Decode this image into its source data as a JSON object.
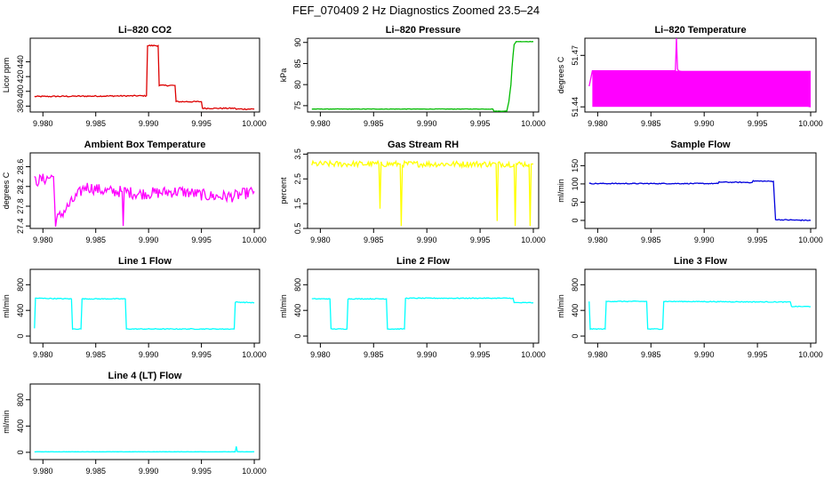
{
  "figure": {
    "title": "FEF_070409  2 Hz Diagnostics Zoomed 23.5–24"
  },
  "chart_data": [
    {
      "type": "line",
      "title": "Li–820 CO2",
      "ylabel": "Licor ppm",
      "color": "#dd0000",
      "xlim": [
        9.9788,
        10.0005
      ],
      "ylim": [
        372,
        472
      ],
      "xticks": [
        "9.980",
        "9.985",
        "9.990",
        "9.995",
        "10.000"
      ],
      "xtick_values": [
        9.98,
        9.985,
        9.99,
        9.995,
        10.0
      ],
      "yticks": [
        "380",
        "400",
        "420",
        "440"
      ],
      "ytick_values": [
        380,
        400,
        420,
        440
      ],
      "series": [
        {
          "x": [
            9.9792,
            9.9898,
            9.9899,
            9.9909,
            9.991,
            9.9925,
            9.9926,
            9.9935,
            9.9936,
            9.995,
            9.9951,
            9.9982,
            9.9983,
            10.0
          ],
          "y": [
            393,
            394,
            462,
            462,
            408,
            408,
            386,
            386,
            386,
            386,
            377,
            377,
            376,
            376
          ]
        }
      ]
    },
    {
      "type": "line",
      "title": "Li–820 Pressure",
      "ylabel": "kPa",
      "color": "#00bb00",
      "xlim": [
        9.9788,
        10.0005
      ],
      "ylim": [
        73.5,
        91
      ],
      "xticks": [
        "9.980",
        "9.985",
        "9.990",
        "9.995",
        "10.000"
      ],
      "xtick_values": [
        9.98,
        9.985,
        9.99,
        9.995,
        10.0
      ],
      "yticks": [
        "75",
        "80",
        "85",
        "90"
      ],
      "ytick_values": [
        75,
        80,
        85,
        90
      ],
      "series": [
        {
          "x": [
            9.9792,
            9.9962,
            9.9963,
            9.9975,
            9.9977,
            9.9979,
            9.998,
            9.9981,
            9.9982,
            9.9984,
            10.0
          ],
          "y": [
            74.2,
            74.2,
            73.7,
            73.7,
            76,
            80,
            84,
            87,
            89.5,
            90.2,
            90.2
          ]
        }
      ]
    },
    {
      "type": "line",
      "title": "Li–820 Temperature",
      "ylabel": "degrees C",
      "color": "#ff00ff",
      "xlim": [
        9.9788,
        10.0005
      ],
      "ylim": [
        51.437,
        51.48
      ],
      "xticks": [
        "9.980",
        "9.985",
        "9.990",
        "9.995",
        "10.000"
      ],
      "xtick_values": [
        9.98,
        9.985,
        9.99,
        9.995,
        10.0
      ],
      "yticks": [
        "51.44",
        "51.47"
      ],
      "ytick_values": [
        51.44,
        51.47
      ],
      "series": [
        {
          "x": [
            9.9792,
            9.9795,
            9.9873,
            9.9874,
            9.9875,
            9.9876,
            10.0
          ],
          "y": [
            51.452,
            51.461,
            51.461,
            51.48,
            51.462,
            51.461,
            51.44
          ]
        }
      ]
    },
    {
      "type": "line",
      "title": "Ambient Box Temperature",
      "ylabel": "degrees C",
      "color": "#ff00ff",
      "xlim": [
        9.9788,
        10.0005
      ],
      "ylim": [
        27.35,
        28.88
      ],
      "xticks": [
        "9.980",
        "9.985",
        "9.990",
        "9.995",
        "10.000"
      ],
      "xtick_values": [
        9.98,
        9.985,
        9.99,
        9.995,
        10.0
      ],
      "yticks": [
        "27.4",
        "27.8",
        "28.2",
        "28.6"
      ],
      "ytick_values": [
        27.4,
        27.8,
        28.2,
        28.6
      ],
      "series": [
        {
          "x": [
            9.9792,
            9.981,
            9.9812,
            9.984,
            9.986,
            9.9875,
            9.9876,
            9.9877,
            9.989,
            9.993,
            9.996,
            9.998,
            10.0
          ],
          "y": [
            28.3,
            28.4,
            27.5,
            28.2,
            28.1,
            28.1,
            27.4,
            28.1,
            28.05,
            28.1,
            28.0,
            28.0,
            28.1
          ]
        }
      ]
    },
    {
      "type": "line",
      "title": "Gas Stream RH",
      "ylabel": "percent",
      "color": "#ffff00",
      "xlim": [
        9.9788,
        10.0005
      ],
      "ylim": [
        0.5,
        3.55
      ],
      "xticks": [
        "9.980",
        "9.985",
        "9.990",
        "9.995",
        "10.000"
      ],
      "xtick_values": [
        9.98,
        9.985,
        9.99,
        9.995,
        10.0
      ],
      "yticks": [
        "0.5",
        "1.5",
        "2.5",
        "3.5"
      ],
      "ytick_values": [
        0.5,
        1.5,
        2.5,
        3.5
      ],
      "series": [
        {
          "x": [
            9.9792,
            9.9855,
            9.9856,
            9.9857,
            9.9875,
            9.9876,
            9.9877,
            9.9965,
            9.9966,
            9.9967,
            9.9982,
            9.9983,
            9.9984,
            9.9996,
            9.9997,
            9.9998,
            10.0
          ],
          "y": [
            3.1,
            3.1,
            1.3,
            3.1,
            3.1,
            0.6,
            3.1,
            3.1,
            0.8,
            3.1,
            3.1,
            0.6,
            3.1,
            3.1,
            0.6,
            3.1,
            3.1
          ]
        }
      ]
    },
    {
      "type": "line",
      "title": "Sample Flow",
      "ylabel": "ml/min",
      "color": "#0000dd",
      "xlim": [
        9.9788,
        10.0005
      ],
      "ylim": [
        -22,
        185
      ],
      "xticks": [
        "9.980",
        "9.985",
        "9.990",
        "9.995",
        "10.000"
      ],
      "xtick_values": [
        9.98,
        9.985,
        9.99,
        9.995,
        10.0
      ],
      "yticks": [
        "0",
        "50",
        "100",
        "150"
      ],
      "ytick_values": [
        0,
        50,
        100,
        150
      ],
      "series": [
        {
          "x": [
            9.9792,
            9.9913,
            9.9914,
            9.9945,
            9.9946,
            9.9965,
            9.9967,
            9.9968,
            10.0
          ],
          "y": [
            101,
            101,
            105,
            104,
            108,
            107,
            2,
            2,
            0
          ]
        }
      ]
    },
    {
      "type": "line",
      "title": "Line 1 Flow",
      "ylabel": "ml/min",
      "color": "#00ffff",
      "xlim": [
        9.9788,
        10.0005
      ],
      "ylim": [
        -110,
        1040
      ],
      "xticks": [
        "9.980",
        "9.985",
        "9.990",
        "9.995",
        "10.000"
      ],
      "xtick_values": [
        9.98,
        9.985,
        9.99,
        9.995,
        10.0
      ],
      "yticks": [
        "0",
        "400",
        "800"
      ],
      "ytick_values": [
        0,
        400,
        800
      ],
      "series": [
        {
          "x": [
            9.9792,
            9.9793,
            9.9827,
            9.9828,
            9.9836,
            9.9837,
            9.9878,
            9.9879,
            9.9981,
            9.9982,
            10.0
          ],
          "y": [
            120,
            590,
            580,
            110,
            110,
            580,
            580,
            110,
            110,
            530,
            520
          ]
        }
      ]
    },
    {
      "type": "line",
      "title": "Line 2 Flow",
      "ylabel": "ml/min",
      "color": "#00ffff",
      "xlim": [
        9.9788,
        10.0005
      ],
      "ylim": [
        -110,
        1040
      ],
      "xticks": [
        "9.980",
        "9.985",
        "9.990",
        "9.995",
        "10.000"
      ],
      "xtick_values": [
        9.98,
        9.985,
        9.99,
        9.995,
        10.0
      ],
      "yticks": [
        "0",
        "400",
        "800"
      ],
      "ytick_values": [
        0,
        400,
        800
      ],
      "series": [
        {
          "x": [
            9.9792,
            9.9809,
            9.981,
            9.9825,
            9.9826,
            9.9862,
            9.9863,
            9.9879,
            9.988,
            9.9981,
            9.9982,
            10.0
          ],
          "y": [
            580,
            580,
            110,
            110,
            580,
            580,
            110,
            110,
            590,
            590,
            520,
            520
          ]
        }
      ]
    },
    {
      "type": "line",
      "title": "Line 3 Flow",
      "ylabel": "ml/min",
      "color": "#00ffff",
      "xlim": [
        9.9788,
        10.0005
      ],
      "ylim": [
        -110,
        1040
      ],
      "xticks": [
        "9.980",
        "9.985",
        "9.990",
        "9.995",
        "10.000"
      ],
      "xtick_values": [
        9.98,
        9.985,
        9.99,
        9.995,
        10.0
      ],
      "yticks": [
        "0",
        "400",
        "800"
      ],
      "ytick_values": [
        0,
        400,
        800
      ],
      "series": [
        {
          "x": [
            9.9792,
            9.9793,
            9.9807,
            9.9808,
            9.9846,
            9.9847,
            9.9861,
            9.9862,
            9.9981,
            9.9982,
            10.0
          ],
          "y": [
            540,
            110,
            110,
            540,
            540,
            110,
            110,
            540,
            530,
            460,
            460
          ]
        }
      ]
    },
    {
      "type": "line",
      "title": "Line 4 (LT) Flow",
      "ylabel": "ml/min",
      "color": "#00ffff",
      "xlim": [
        9.9788,
        10.0005
      ],
      "ylim": [
        -110,
        1040
      ],
      "xticks": [
        "9.980",
        "9.985",
        "9.990",
        "9.995",
        "10.000"
      ],
      "xtick_values": [
        9.98,
        9.985,
        9.99,
        9.995,
        10.0
      ],
      "yticks": [
        "0",
        "400",
        "800"
      ],
      "ytick_values": [
        0,
        400,
        800
      ],
      "series": [
        {
          "x": [
            9.9792,
            9.9982,
            9.9983,
            9.9984,
            10.0
          ],
          "y": [
            8,
            8,
            90,
            8,
            8
          ]
        }
      ]
    }
  ]
}
